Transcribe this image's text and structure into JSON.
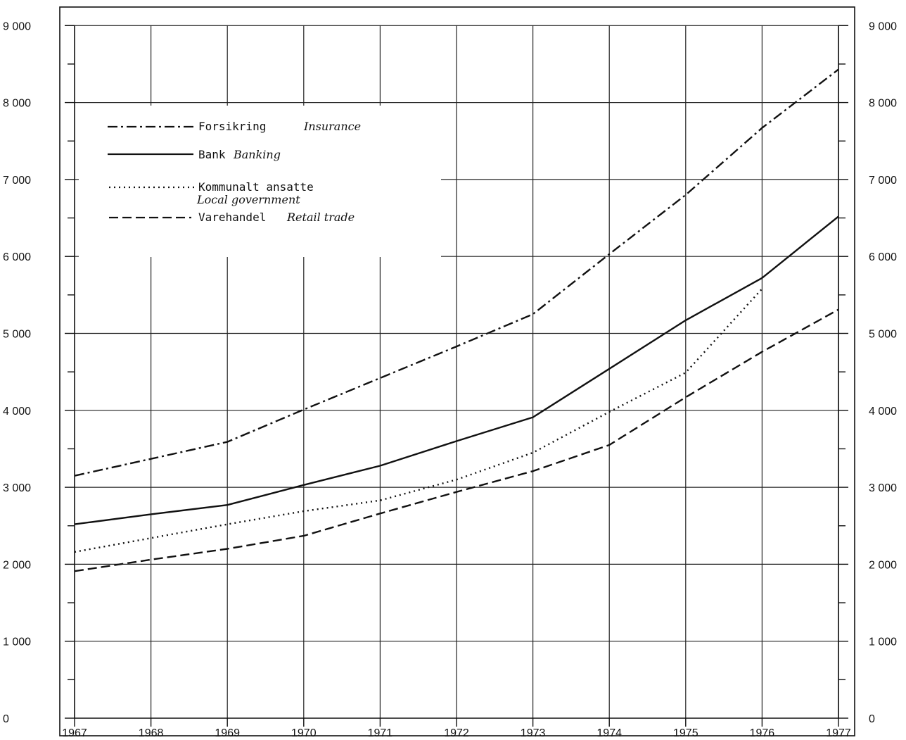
{
  "chart_data": {
    "type": "line",
    "title": "",
    "xlabel": "",
    "ylabel": "",
    "x": [
      1967,
      1968,
      1969,
      1970,
      1971,
      1972,
      1973,
      1974,
      1975,
      1976,
      1977
    ],
    "xtick_labels": [
      "1967",
      "1968",
      "1969",
      "1970",
      "1971",
      "1972",
      "1973",
      "1974",
      "1975",
      "1976",
      "1977"
    ],
    "ylim": [
      0,
      9000
    ],
    "yticks": [
      0,
      1000,
      2000,
      3000,
      4000,
      5000,
      6000,
      7000,
      8000,
      9000
    ],
    "ytick_labels_left": [
      "0",
      "1 000",
      "2 000",
      "3 000",
      "4 000",
      "5 000",
      "6 000",
      "7 000",
      "8 000",
      "9 000"
    ],
    "ytick_labels_right": [
      "0",
      "1 000",
      "2 000",
      "3 000",
      "4 000",
      "5 000",
      "6 000",
      "7 000",
      "8 000",
      "9 000"
    ],
    "grid": true,
    "legend_position": "top-left",
    "series": [
      {
        "name": "Forsikring",
        "name_en": "Insurance",
        "style": "dash-dot",
        "values": [
          3150,
          3370,
          3590,
          4010,
          4420,
          4830,
          5250,
          6030,
          6800,
          7670,
          8430
        ]
      },
      {
        "name": "Bank",
        "name_en": "Banking",
        "style": "solid",
        "values": [
          2520,
          2650,
          2770,
          3030,
          3280,
          3600,
          3910,
          4540,
          5170,
          5720,
          6520
        ]
      },
      {
        "name": "Kommunalt ansatte",
        "name_en": "Local government",
        "style": "dotted",
        "values": [
          2160,
          2340,
          2520,
          2690,
          2830,
          3100,
          3450,
          3980,
          4490,
          5580,
          null
        ]
      },
      {
        "name": "Varehandel",
        "name_en": "Retail trade",
        "style": "dashed",
        "values": [
          1910,
          2060,
          2200,
          2370,
          2660,
          2940,
          3210,
          3550,
          4170,
          4760,
          5310
        ]
      }
    ]
  }
}
